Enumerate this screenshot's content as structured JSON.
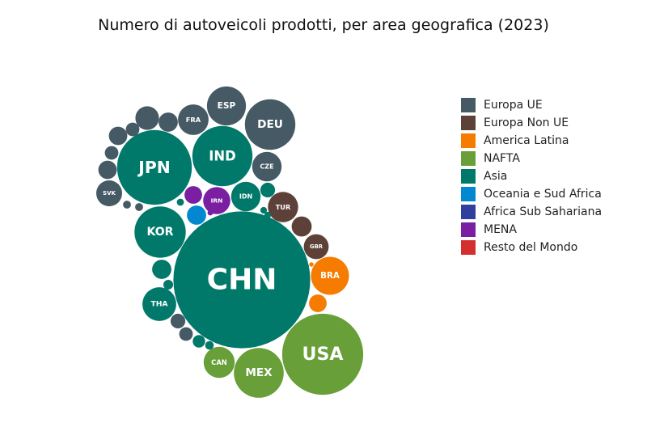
{
  "chart_data": {
    "type": "bubble",
    "title": "Numero di autoveicoli prodotti, per area geografica (2023)",
    "legend": {
      "position": "right",
      "entries": [
        {
          "name": "Europa UE",
          "color": "#455a64"
        },
        {
          "name": "Europa Non UE",
          "color": "#5d4037"
        },
        {
          "name": "America Latina",
          "color": "#f57c00"
        },
        {
          "name": "NAFTA",
          "color": "#689f38"
        },
        {
          "name": "Asia",
          "color": "#00796b"
        },
        {
          "name": "Oceania e Sud Africa",
          "color": "#0288d1"
        },
        {
          "name": "Africa Sub Sahariana",
          "color": "#303f9f"
        },
        {
          "name": "MENA",
          "color": "#7b1fa2"
        },
        {
          "name": "Resto del Mondo",
          "color": "#d32f2f"
        }
      ]
    },
    "bubbles": [
      {
        "label": "CHN",
        "group": "Asia",
        "value": 30.2
      },
      {
        "label": "USA",
        "group": "NAFTA",
        "value": 10.6
      },
      {
        "label": "JPN",
        "group": "Asia",
        "value": 9.0
      },
      {
        "label": "IND",
        "group": "Asia",
        "value": 5.85
      },
      {
        "label": "DEU",
        "group": "Europa UE",
        "value": 4.1
      },
      {
        "label": "KOR",
        "group": "Asia",
        "value": 4.24
      },
      {
        "label": "MEX",
        "group": "NAFTA",
        "value": 4.0
      },
      {
        "label": "BRA",
        "group": "America Latina",
        "value": 2.32
      },
      {
        "label": "ESP",
        "group": "Europa UE",
        "value": 2.45
      },
      {
        "label": "THA",
        "group": "Asia",
        "value": 1.84
      },
      {
        "label": "CAN",
        "group": "NAFTA",
        "value": 1.55
      },
      {
        "label": "FRA",
        "group": "Europa UE",
        "value": 1.5
      },
      {
        "label": "TUR",
        "group": "Europa Non UE",
        "value": 1.47
      },
      {
        "label": "IDN",
        "group": "Asia",
        "value": 1.4
      },
      {
        "label": "CZE",
        "group": "Europa UE",
        "value": 1.4
      },
      {
        "label": "SVK",
        "group": "Europa UE",
        "value": 1.08
      },
      {
        "label": "IRN",
        "group": "MENA",
        "value": 1.19
      },
      {
        "label": "GBR",
        "group": "Europa Non UE",
        "value": 1.0
      },
      {
        "label": "",
        "group": "Europa UE",
        "value": 0.9
      },
      {
        "label": "",
        "group": "Europa UE",
        "value": 0.55
      },
      {
        "label": "",
        "group": "Europa UE",
        "value": 0.6
      },
      {
        "label": "",
        "group": "Europa UE",
        "value": 0.3
      },
      {
        "label": "",
        "group": "Europa UE",
        "value": 0.3
      },
      {
        "label": "",
        "group": "Europa UE",
        "value": 0.55
      },
      {
        "label": "",
        "group": "Europa UE",
        "value": 0.3
      },
      {
        "label": "",
        "group": "Europa UE",
        "value": 0.35
      },
      {
        "label": "",
        "group": "Europa UE",
        "value": 0.1
      },
      {
        "label": "",
        "group": "Europa UE",
        "value": 0.1
      },
      {
        "label": "",
        "group": "Europa Non UE",
        "value": 0.65
      },
      {
        "label": "",
        "group": "America Latina",
        "value": 0.5
      },
      {
        "label": "",
        "group": "America Latina",
        "value": 0.03
      },
      {
        "label": "",
        "group": "Oceania e Sud Africa",
        "value": 0.6
      },
      {
        "label": "",
        "group": "MENA",
        "value": 0.5
      },
      {
        "label": "",
        "group": "MENA",
        "value": 0.05
      },
      {
        "label": "",
        "group": "Asia",
        "value": 0.6
      },
      {
        "label": "",
        "group": "Asia",
        "value": 0.35
      },
      {
        "label": "",
        "group": "Asia",
        "value": 0.25
      },
      {
        "label": "",
        "group": "Asia",
        "value": 0.15
      },
      {
        "label": "",
        "group": "Asia",
        "value": 0.12
      },
      {
        "label": "",
        "group": "Asia",
        "value": 0.08
      },
      {
        "label": "",
        "group": "Asia",
        "value": 0.07
      },
      {
        "label": "",
        "group": "Asia",
        "value": 0.07
      }
    ]
  }
}
